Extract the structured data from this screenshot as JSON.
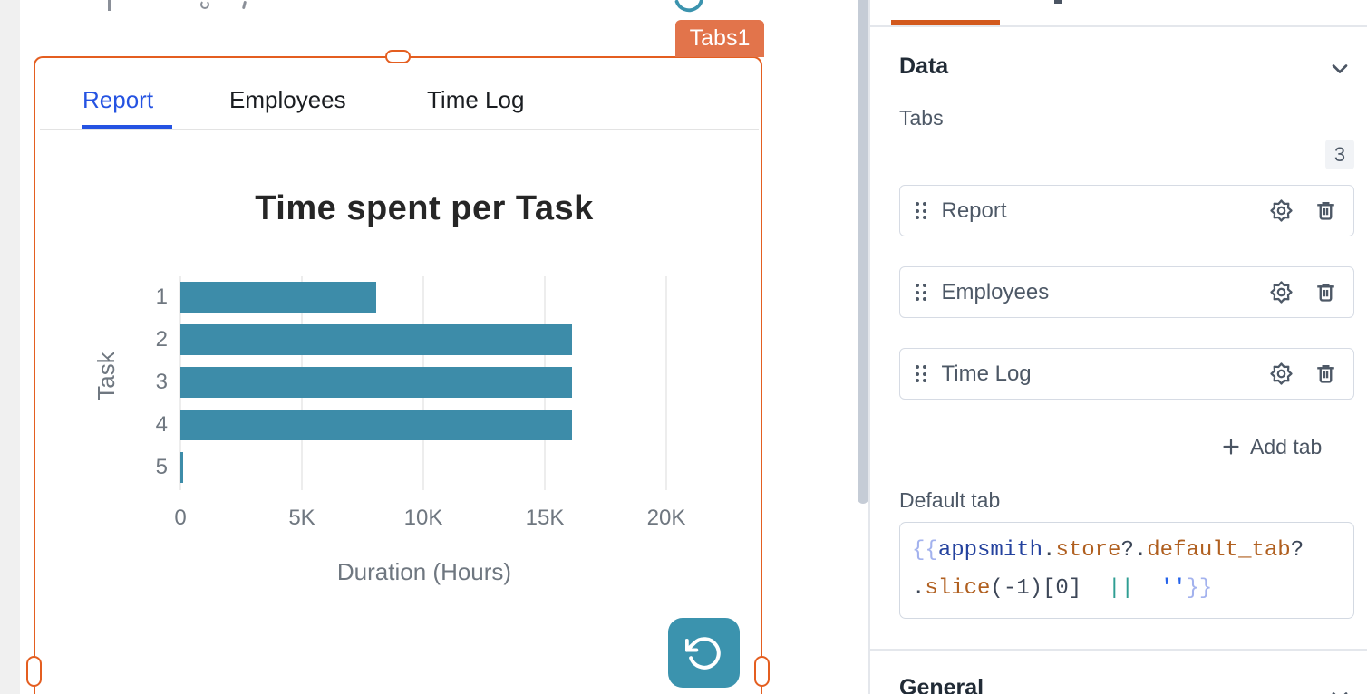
{
  "canvas": {
    "widget_badge": "Tabs1",
    "widget_tabs": [
      {
        "label": "Report",
        "active": true
      },
      {
        "label": "Employees",
        "active": false
      },
      {
        "label": "Time Log",
        "active": false
      }
    ]
  },
  "chart_data": {
    "type": "bar",
    "orientation": "horizontal",
    "title": "Time spent per Task",
    "ylabel": "Task",
    "xlabel": "Duration (Hours)",
    "categories": [
      "1",
      "2",
      "3",
      "4",
      "5"
    ],
    "values": [
      8060,
      16120,
      16120,
      16120,
      80
    ],
    "xlim": [
      0,
      20000
    ],
    "x_ticks": [
      {
        "label": "0",
        "value": 0
      },
      {
        "label": "5K",
        "value": 5000
      },
      {
        "label": "10K",
        "value": 10000
      },
      {
        "label": "15K",
        "value": 15000
      },
      {
        "label": "20K",
        "value": 20000
      }
    ],
    "grid": true,
    "legend": false,
    "bar_color": "#3D8CA9"
  },
  "property_pane": {
    "data_section_title": "Data",
    "tabs_field": {
      "label": "Tabs",
      "count": "3",
      "items": [
        "Report",
        "Employees",
        "Time Log"
      ],
      "add_button_label": "Add tab"
    },
    "default_tab_field": {
      "label": "Default tab",
      "code_plain": "{{appsmith.store?.default_tab?.slice(-1)[0] || ''}}",
      "code_lines": [
        [
          {
            "t": "{{",
            "c": "brace"
          },
          {
            "t": "appsmith",
            "c": "var"
          },
          {
            "t": ".",
            "c": "punc"
          },
          {
            "t": "store",
            "c": "prop"
          },
          {
            "t": "?.",
            "c": "punc"
          },
          {
            "t": "default_tab",
            "c": "prop"
          },
          {
            "t": "?",
            "c": "punc"
          }
        ],
        [
          {
            "t": ".",
            "c": "punc"
          },
          {
            "t": "slice",
            "c": "prop"
          },
          {
            "t": "(-1)[0]",
            "c": "punc"
          },
          {
            "t": "  ",
            "c": "punc"
          },
          {
            "t": "||",
            "c": "op"
          },
          {
            "t": "  ",
            "c": "punc"
          },
          {
            "t": "''",
            "c": "str"
          },
          {
            "t": "}}",
            "c": "brace"
          }
        ]
      ]
    },
    "general_section_title": "General"
  },
  "colors": {
    "selection_orange": "#E45E20",
    "widget_badge_bg": "#E2744B",
    "bar_teal": "#3D8CA9",
    "button_teal": "#3B93AE",
    "active_tab_blue": "#2553E2",
    "pane_tab_underline": "#D2591D",
    "header_text": "#212B36",
    "body_text": "#4D5866"
  }
}
